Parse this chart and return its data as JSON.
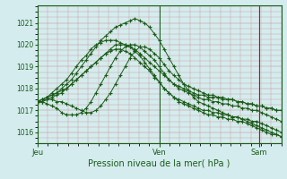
{
  "xlabel": "Pression niveau de la mer( hPa )",
  "background_color": "#d4ecee",
  "grid_color_major": "#cc8888",
  "grid_color_minor": "#cc8888",
  "line_color": "#1a5c1a",
  "ylim": [
    1015.5,
    1021.8
  ],
  "yticks": [
    1016,
    1017,
    1018,
    1019,
    1020,
    1021
  ],
  "day_labels": [
    "Jeu",
    "Ven",
    "Sam"
  ],
  "day_positions": [
    0.0,
    0.5,
    0.91
  ],
  "total_steps": 100,
  "lines": [
    {
      "x": [
        0.0,
        0.02,
        0.04,
        0.06,
        0.08,
        0.1,
        0.12,
        0.14,
        0.16,
        0.18,
        0.2,
        0.22,
        0.24,
        0.26,
        0.28,
        0.3,
        0.32,
        0.34,
        0.36,
        0.38,
        0.4,
        0.42,
        0.44,
        0.46,
        0.48,
        0.5,
        0.52,
        0.54,
        0.56,
        0.58,
        0.6,
        0.62,
        0.64,
        0.66,
        0.68,
        0.7,
        0.72,
        0.74,
        0.76,
        0.78,
        0.8,
        0.82,
        0.84,
        0.86,
        0.88,
        0.9,
        0.92,
        0.94,
        0.96,
        0.98,
        1.0
      ],
      "y": [
        1017.4,
        1017.5,
        1017.6,
        1017.7,
        1017.8,
        1017.9,
        1018.0,
        1018.2,
        1018.4,
        1018.6,
        1018.8,
        1019.0,
        1019.2,
        1019.4,
        1019.6,
        1019.8,
        1020.0,
        1020.0,
        1020.0,
        1019.9,
        1019.8,
        1019.6,
        1019.4,
        1019.2,
        1019.0,
        1018.8,
        1018.6,
        1018.4,
        1018.2,
        1018.1,
        1018.0,
        1017.9,
        1017.8,
        1017.7,
        1017.7,
        1017.6,
        1017.6,
        1017.6,
        1017.5,
        1017.5,
        1017.5,
        1017.4,
        1017.4,
        1017.3,
        1017.3,
        1017.2,
        1017.2,
        1017.1,
        1017.1,
        1017.0,
        1017.0
      ]
    },
    {
      "x": [
        0.0,
        0.02,
        0.04,
        0.06,
        0.08,
        0.1,
        0.12,
        0.14,
        0.16,
        0.18,
        0.2,
        0.22,
        0.24,
        0.26,
        0.28,
        0.3,
        0.32,
        0.34,
        0.36,
        0.38,
        0.4,
        0.42,
        0.44,
        0.46,
        0.48,
        0.5,
        0.52,
        0.54,
        0.56,
        0.58,
        0.6,
        0.62,
        0.64,
        0.66,
        0.68,
        0.7,
        0.72,
        0.74,
        0.76,
        0.78,
        0.8,
        0.82,
        0.84,
        0.86,
        0.88,
        0.9,
        0.92,
        0.94,
        0.96,
        0.98,
        1.0
      ],
      "y": [
        1017.4,
        1017.4,
        1017.5,
        1017.5,
        1017.4,
        1017.4,
        1017.3,
        1017.2,
        1017.1,
        1017.0,
        1016.9,
        1016.9,
        1017.0,
        1017.2,
        1017.5,
        1017.8,
        1018.2,
        1018.6,
        1019.0,
        1019.4,
        1019.7,
        1019.9,
        1019.9,
        1019.8,
        1019.6,
        1019.4,
        1019.1,
        1018.8,
        1018.6,
        1018.4,
        1018.2,
        1018.1,
        1018.0,
        1017.9,
        1017.8,
        1017.7,
        1017.7,
        1017.6,
        1017.6,
        1017.5,
        1017.5,
        1017.4,
        1017.4,
        1017.3,
        1017.3,
        1017.2,
        1017.2,
        1017.1,
        1017.1,
        1017.0,
        1017.0
      ]
    },
    {
      "x": [
        0.0,
        0.02,
        0.04,
        0.06,
        0.08,
        0.1,
        0.12,
        0.14,
        0.16,
        0.18,
        0.2,
        0.22,
        0.24,
        0.26,
        0.28,
        0.3,
        0.32,
        0.34,
        0.36,
        0.38,
        0.4,
        0.42,
        0.44,
        0.46,
        0.48,
        0.5,
        0.52,
        0.54,
        0.56,
        0.58,
        0.6,
        0.62,
        0.64,
        0.66,
        0.68,
        0.7,
        0.72,
        0.74,
        0.76,
        0.78,
        0.8,
        0.82,
        0.84,
        0.86,
        0.88,
        0.9,
        0.92,
        0.94,
        0.96,
        0.98,
        1.0
      ],
      "y": [
        1017.4,
        1017.4,
        1017.3,
        1017.2,
        1017.1,
        1016.9,
        1016.8,
        1016.8,
        1016.8,
        1016.9,
        1017.1,
        1017.4,
        1017.8,
        1018.2,
        1018.6,
        1019.0,
        1019.4,
        1019.7,
        1019.9,
        1020.0,
        1020.0,
        1019.9,
        1019.7,
        1019.5,
        1019.3,
        1019.0,
        1018.7,
        1018.4,
        1018.2,
        1018.0,
        1017.9,
        1017.8,
        1017.7,
        1017.6,
        1017.5,
        1017.5,
        1017.4,
        1017.4,
        1017.3,
        1017.3,
        1017.2,
        1017.2,
        1017.1,
        1017.1,
        1017.0,
        1017.0,
        1016.9,
        1016.8,
        1016.7,
        1016.6,
        1016.5
      ]
    },
    {
      "x": [
        0.0,
        0.02,
        0.04,
        0.06,
        0.08,
        0.1,
        0.12,
        0.14,
        0.16,
        0.18,
        0.2,
        0.22,
        0.24,
        0.26,
        0.28,
        0.3,
        0.32,
        0.34,
        0.36,
        0.38,
        0.4,
        0.42,
        0.44,
        0.46,
        0.48,
        0.5,
        0.52,
        0.54,
        0.56,
        0.58,
        0.6,
        0.62,
        0.64,
        0.66,
        0.68,
        0.7,
        0.72,
        0.74,
        0.76,
        0.78,
        0.8,
        0.82,
        0.84,
        0.86,
        0.88,
        0.9,
        0.92,
        0.94,
        0.96,
        0.98,
        1.0
      ],
      "y": [
        1017.4,
        1017.5,
        1017.6,
        1017.7,
        1017.8,
        1018.0,
        1018.2,
        1018.4,
        1018.7,
        1019.0,
        1019.3,
        1019.6,
        1019.9,
        1020.2,
        1020.4,
        1020.6,
        1020.8,
        1020.9,
        1021.0,
        1021.1,
        1021.2,
        1021.1,
        1021.0,
        1020.8,
        1020.5,
        1020.2,
        1019.8,
        1019.4,
        1019.0,
        1018.6,
        1018.2,
        1017.9,
        1017.6,
        1017.4,
        1017.3,
        1017.2,
        1017.1,
        1017.0,
        1016.9,
        1016.8,
        1016.7,
        1016.7,
        1016.6,
        1016.6,
        1016.5,
        1016.5,
        1016.4,
        1016.3,
        1016.2,
        1016.1,
        1016.0
      ]
    },
    {
      "x": [
        0.0,
        0.02,
        0.04,
        0.06,
        0.08,
        0.1,
        0.12,
        0.14,
        0.16,
        0.18,
        0.2,
        0.22,
        0.24,
        0.26,
        0.28,
        0.3,
        0.32,
        0.34,
        0.36,
        0.38,
        0.4,
        0.42,
        0.44,
        0.46,
        0.48,
        0.5,
        0.52,
        0.54,
        0.56,
        0.58,
        0.6,
        0.62,
        0.64,
        0.66,
        0.68,
        0.7,
        0.72,
        0.74,
        0.76,
        0.78,
        0.8,
        0.82,
        0.84,
        0.86,
        0.88,
        0.9,
        0.92,
        0.94,
        0.96,
        0.98,
        1.0
      ],
      "y": [
        1017.4,
        1017.5,
        1017.6,
        1017.8,
        1018.0,
        1018.2,
        1018.4,
        1018.7,
        1019.0,
        1019.3,
        1019.5,
        1019.8,
        1020.0,
        1020.1,
        1020.2,
        1020.2,
        1020.2,
        1020.1,
        1020.0,
        1019.9,
        1019.7,
        1019.5,
        1019.2,
        1018.9,
        1018.6,
        1018.3,
        1018.0,
        1017.8,
        1017.6,
        1017.4,
        1017.3,
        1017.2,
        1017.1,
        1017.0,
        1016.9,
        1016.8,
        1016.8,
        1016.7,
        1016.7,
        1016.6,
        1016.6,
        1016.5,
        1016.5,
        1016.4,
        1016.3,
        1016.2,
        1016.1,
        1016.0,
        1015.9,
        1015.9,
        1015.8
      ]
    },
    {
      "x": [
        0.0,
        0.02,
        0.04,
        0.06,
        0.08,
        0.1,
        0.12,
        0.14,
        0.16,
        0.18,
        0.2,
        0.22,
        0.24,
        0.26,
        0.28,
        0.3,
        0.32,
        0.34,
        0.36,
        0.38,
        0.4,
        0.42,
        0.44,
        0.46,
        0.48,
        0.5,
        0.52,
        0.54,
        0.56,
        0.58,
        0.6,
        0.62,
        0.64,
        0.66,
        0.68,
        0.7,
        0.72,
        0.74,
        0.76,
        0.78,
        0.8,
        0.82,
        0.84,
        0.86,
        0.88,
        0.9,
        0.92,
        0.94,
        0.96,
        0.98,
        1.0
      ],
      "y": [
        1017.4,
        1017.4,
        1017.5,
        1017.6,
        1017.7,
        1017.8,
        1018.0,
        1018.2,
        1018.4,
        1018.6,
        1018.8,
        1019.0,
        1019.2,
        1019.4,
        1019.6,
        1019.7,
        1019.8,
        1019.8,
        1019.7,
        1019.6,
        1019.4,
        1019.2,
        1019.0,
        1018.8,
        1018.5,
        1018.3,
        1018.0,
        1017.8,
        1017.6,
        1017.5,
        1017.4,
        1017.3,
        1017.2,
        1017.1,
        1017.0,
        1017.0,
        1016.9,
        1016.9,
        1016.8,
        1016.8,
        1016.7,
        1016.7,
        1016.6,
        1016.5,
        1016.4,
        1016.3,
        1016.2,
        1016.1,
        1016.0,
        1015.9,
        1015.8
      ]
    }
  ]
}
